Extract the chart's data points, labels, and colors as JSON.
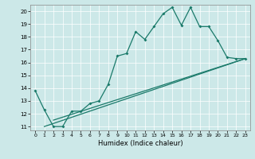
{
  "xlabel": "Humidex (Indice chaleur)",
  "bg_color": "#cce8e8",
  "line_color": "#1a7a6a",
  "grid_color": "#ffffff",
  "xlim": [
    -0.5,
    23.5
  ],
  "ylim": [
    10.7,
    20.5
  ],
  "yticks": [
    11,
    12,
    13,
    14,
    15,
    16,
    17,
    18,
    19,
    20
  ],
  "xticks": [
    0,
    1,
    2,
    3,
    4,
    5,
    6,
    7,
    8,
    9,
    10,
    11,
    12,
    13,
    14,
    15,
    16,
    17,
    18,
    19,
    20,
    21,
    22,
    23
  ],
  "series1_x": [
    0,
    1,
    2,
    3,
    4,
    5,
    6,
    7,
    8,
    9,
    10,
    11,
    12,
    13,
    14,
    15,
    16,
    17,
    18,
    19,
    20,
    21,
    22,
    23
  ],
  "series1_y": [
    13.8,
    12.3,
    11.0,
    11.0,
    12.2,
    12.2,
    12.8,
    13.0,
    14.3,
    16.5,
    16.7,
    18.4,
    17.8,
    18.8,
    19.8,
    20.3,
    18.9,
    20.3,
    18.8,
    18.8,
    17.7,
    16.4,
    16.3,
    16.3
  ],
  "series2_x": [
    1,
    23
  ],
  "series2_y": [
    11.0,
    16.3
  ],
  "series3_x": [
    2,
    23
  ],
  "series3_y": [
    11.5,
    16.3
  ]
}
